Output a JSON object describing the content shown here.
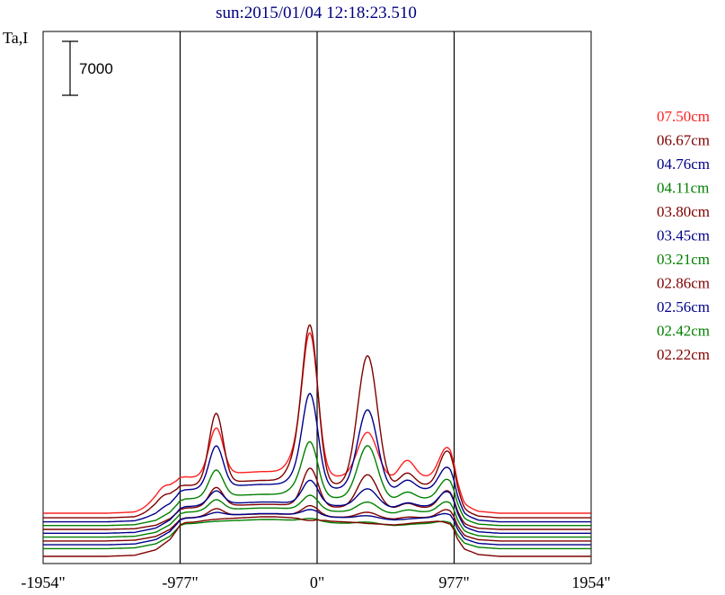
{
  "chart_data": {
    "type": "line",
    "title": "sun:2015/01/04 12:18:23.510",
    "ylabel": "Ta,I",
    "xlabel": "",
    "x_ticks": [
      {
        "value": -1954,
        "label": "-1954\""
      },
      {
        "value": -977,
        "label": "-977\""
      },
      {
        "value": 0,
        "label": "0\""
      },
      {
        "value": 977,
        "label": "977\""
      },
      {
        "value": 1954,
        "label": "1954\""
      }
    ],
    "xlim": [
      -1954,
      1954
    ],
    "vertical_reference_lines": [
      -977,
      0,
      977
    ],
    "scale_bar": {
      "value": 7000,
      "label": "7000"
    },
    "legend_position": "right",
    "colors": {
      "red": "#ff2020",
      "darkred": "#800000",
      "blue": "#00008b",
      "green": "#008000"
    },
    "series": [
      {
        "name": "07.50cm",
        "color": "#ff2020"
      },
      {
        "name": "06.67cm",
        "color": "#800000"
      },
      {
        "name": "04.76cm",
        "color": "#00008b"
      },
      {
        "name": "04.11cm",
        "color": "#008000"
      },
      {
        "name": "03.80cm",
        "color": "#800000"
      },
      {
        "name": "03.45cm",
        "color": "#00008b"
      },
      {
        "name": "03.21cm",
        "color": "#008000"
      },
      {
        "name": "02.86cm",
        "color": "#800000"
      },
      {
        "name": "02.56cm",
        "color": "#00008b"
      },
      {
        "name": "02.42cm",
        "color": "#008000"
      },
      {
        "name": "02.22cm",
        "color": "#800000"
      }
    ],
    "profile_x": [
      -1954,
      -1500,
      -1300,
      -1150,
      -1050,
      -1000,
      -977,
      -940,
      -870,
      -800,
      -760,
      -700,
      -600,
      -500,
      -400,
      -300,
      -200,
      -140,
      -100,
      -60,
      -30,
      0,
      30,
      60,
      100,
      200,
      300,
      350,
      450,
      550,
      620,
      660,
      720,
      800,
      860,
      900,
      950,
      977,
      1000,
      1050,
      1150,
      1300,
      1500,
      1954
    ],
    "profile_levels": [
      0,
      0,
      150,
      900,
      2300,
      3600,
      4300,
      4600,
      4700,
      4900,
      5000,
      5100,
      5200,
      5300,
      5400,
      5400,
      5300,
      5200,
      5000,
      4900,
      4900,
      5000,
      4900,
      4900,
      4800,
      4700,
      4600,
      4500,
      4400,
      4300,
      4400,
      4500,
      4600,
      4700,
      4800,
      4700,
      4400,
      3600,
      2400,
      1000,
      250,
      0,
      0,
      0
    ],
    "peaks": [
      {
        "x": -1100,
        "w": 70
      },
      {
        "x": -720,
        "w": 50
      },
      {
        "x": -150,
        "w": 60
      },
      {
        "x": -50,
        "w": 55
      },
      {
        "x": 360,
        "w": 70
      },
      {
        "x": 640,
        "w": 55
      },
      {
        "x": 930,
        "w": 55
      }
    ],
    "peak_amplitudes": [
      [
        1800,
        6000,
        2000,
        18000,
        6000,
        2400,
        4000
      ],
      [
        1400,
        9000,
        2500,
        20000,
        17000,
        1800,
        4600
      ],
      [
        400,
        5300,
        1000,
        12000,
        10500,
        1400,
        3000
      ],
      [
        0,
        3400,
        800,
        7000,
        7000,
        1000,
        2600
      ],
      [
        0,
        2400,
        0,
        5000,
        4400,
        700,
        2300
      ],
      [
        0,
        1700,
        0,
        3200,
        2400,
        600,
        2000
      ],
      [
        0,
        1300,
        0,
        2000,
        1400,
        400,
        1400
      ],
      [
        0,
        900,
        0,
        1400,
        800,
        200,
        1100
      ],
      [
        0,
        400,
        0,
        900,
        400,
        0,
        600
      ],
      [
        0,
        0,
        0,
        500,
        300,
        0,
        300
      ],
      [
        0,
        0,
        0,
        0,
        0,
        0,
        0
      ]
    ],
    "profile_scale": [
      1.0,
      0.9,
      0.9,
      0.75,
      0.6,
      0.75,
      0.7,
      0.65,
      0.75,
      0.7,
      0.95
    ],
    "baseline_offsets": [
      5600,
      5000,
      4480,
      4000,
      3500,
      3000,
      2500,
      2000,
      1500,
      1000,
      0
    ]
  }
}
